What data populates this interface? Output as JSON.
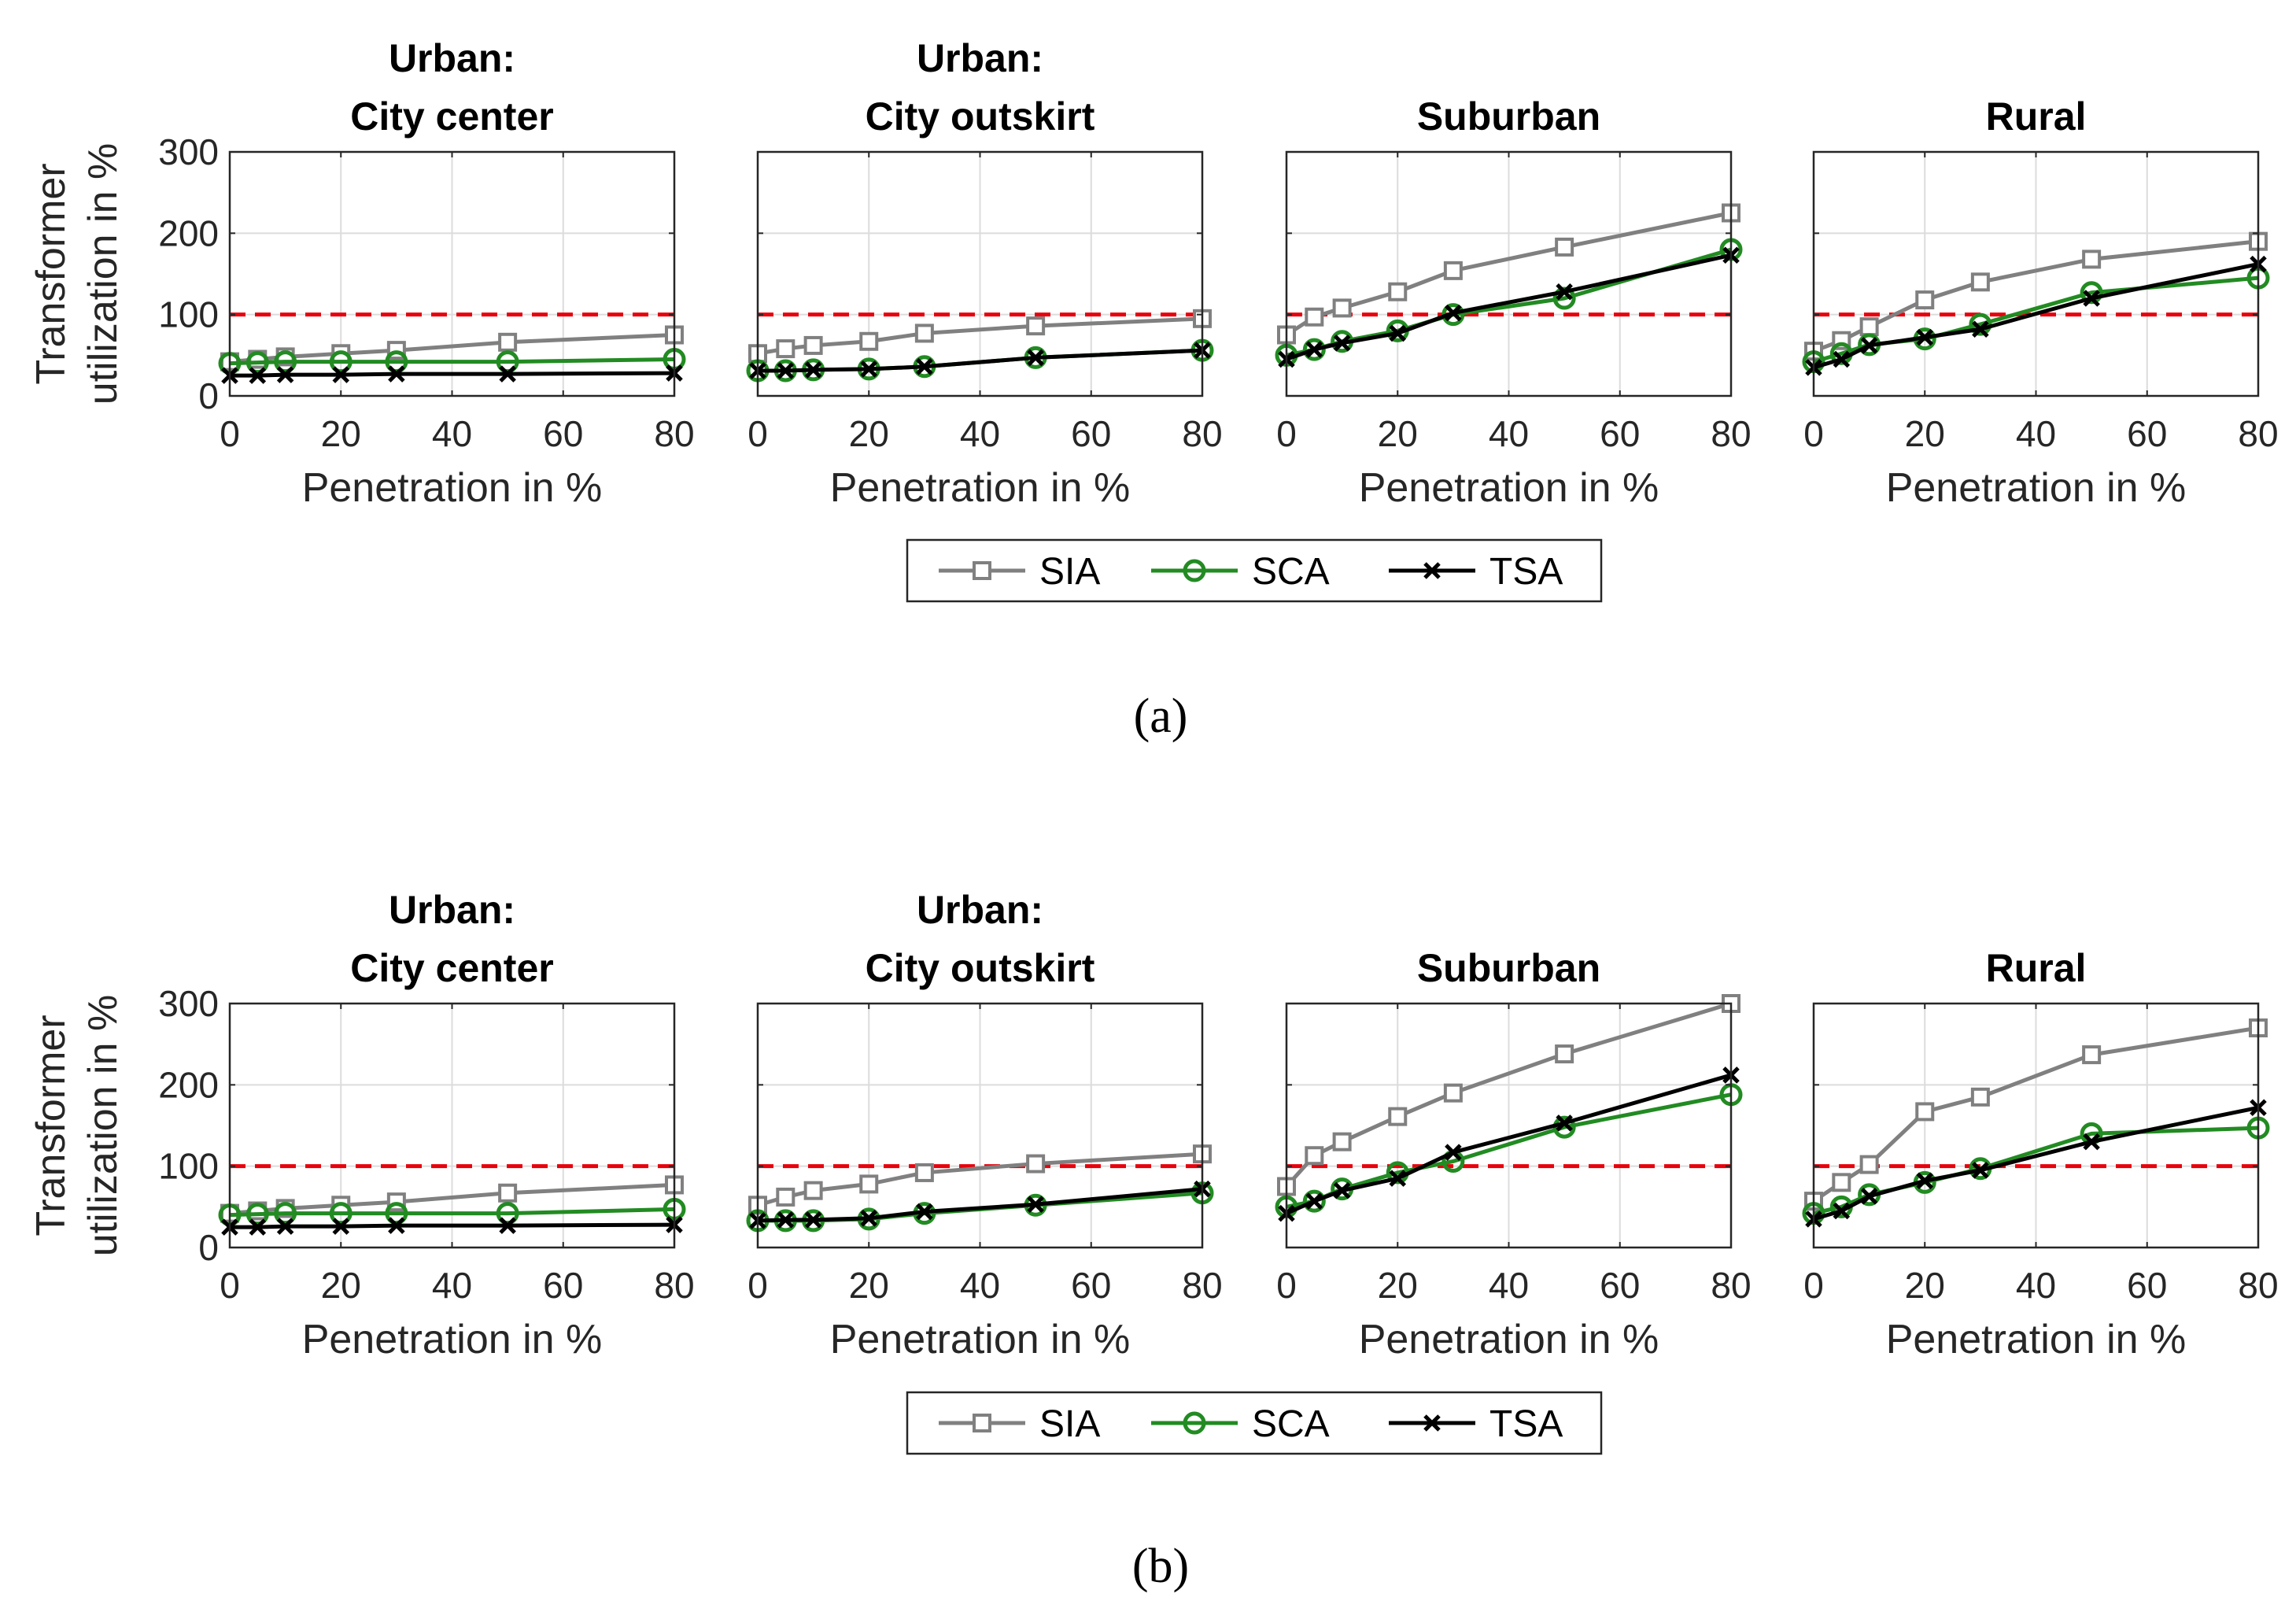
{
  "figure": {
    "ylabel_line1": "Transformer",
    "ylabel_line2": "utilization in %",
    "xlabel": "Penetration in %",
    "threshold_value": 100,
    "legend": [
      {
        "key": "SIA",
        "label": "SIA",
        "color": "#808080",
        "marker": "square"
      },
      {
        "key": "SCA",
        "label": "SCA",
        "color": "#228b22",
        "marker": "circle"
      },
      {
        "key": "TSA",
        "label": "TSA",
        "color": "#000000",
        "marker": "x"
      }
    ],
    "threshold_color": "#e8000b"
  },
  "chart_data": [
    {
      "panel": "(a)",
      "type": "line",
      "subplots": [
        {
          "title_line1": "Urban:",
          "title_line2": "City center",
          "x": [
            0,
            5,
            10,
            20,
            30,
            50,
            80
          ],
          "xlim": [
            0,
            80
          ],
          "ylim": [
            0,
            300
          ],
          "xticks": [
            0,
            20,
            40,
            60,
            80
          ],
          "yticks": [
            0,
            100,
            200,
            300
          ],
          "series": [
            {
              "name": "SIA",
              "values": [
                42,
                45,
                48,
                52,
                56,
                66,
                75
              ]
            },
            {
              "name": "SCA",
              "values": [
                40,
                41,
                42,
                42,
                42,
                42,
                45
              ]
            },
            {
              "name": "TSA",
              "values": [
                25,
                25,
                26,
                26,
                27,
                27,
                28
              ]
            }
          ],
          "threshold": 100
        },
        {
          "title_line1": "Urban:",
          "title_line2": "City outskirt",
          "x": [
            0,
            5,
            10,
            20,
            30,
            50,
            80
          ],
          "xlim": [
            0,
            80
          ],
          "ylim": [
            0,
            300
          ],
          "xticks": [
            0,
            20,
            40,
            60,
            80
          ],
          "yticks": [
            0,
            100,
            200,
            300
          ],
          "series": [
            {
              "name": "SIA",
              "values": [
                52,
                58,
                62,
                67,
                77,
                86,
                95
              ]
            },
            {
              "name": "SCA",
              "values": [
                31,
                31,
                32,
                33,
                36,
                47,
                56
              ]
            },
            {
              "name": "TSA",
              "values": [
                31,
                31,
                32,
                33,
                36,
                47,
                56
              ]
            }
          ],
          "threshold": 100
        },
        {
          "title_line1": "",
          "title_line2": "Suburban",
          "x": [
            0,
            5,
            10,
            20,
            30,
            50,
            80
          ],
          "xlim": [
            0,
            80
          ],
          "ylim": [
            0,
            300
          ],
          "xticks": [
            0,
            20,
            40,
            60,
            80
          ],
          "yticks": [
            0,
            100,
            200,
            300
          ],
          "series": [
            {
              "name": "SIA",
              "values": [
                75,
                97,
                108,
                128,
                154,
                183,
                225
              ]
            },
            {
              "name": "SCA",
              "values": [
                50,
                57,
                67,
                80,
                100,
                120,
                180
              ]
            },
            {
              "name": "TSA",
              "values": [
                45,
                57,
                65,
                77,
                102,
                128,
                173
              ]
            }
          ],
          "threshold": 100
        },
        {
          "title_line1": "",
          "title_line2": "Rural",
          "x": [
            0,
            5,
            10,
            20,
            30,
            50,
            80
          ],
          "xlim": [
            0,
            80
          ],
          "ylim": [
            0,
            300
          ],
          "xticks": [
            0,
            20,
            40,
            60,
            80
          ],
          "yticks": [
            0,
            100,
            200,
            300
          ],
          "series": [
            {
              "name": "SIA",
              "values": [
                55,
                68,
                85,
                118,
                140,
                168,
                190
              ]
            },
            {
              "name": "SCA",
              "values": [
                42,
                52,
                63,
                70,
                88,
                127,
                145
              ]
            },
            {
              "name": "TSA",
              "values": [
                35,
                45,
                62,
                72,
                82,
                120,
                162
              ]
            }
          ],
          "threshold": 100
        }
      ]
    },
    {
      "panel": "(b)",
      "type": "line",
      "subplots": [
        {
          "title_line1": "Urban:",
          "title_line2": "City center",
          "x": [
            0,
            5,
            10,
            20,
            30,
            50,
            80
          ],
          "xlim": [
            0,
            80
          ],
          "ylim": [
            0,
            300
          ],
          "xticks": [
            0,
            20,
            40,
            60,
            80
          ],
          "yticks": [
            0,
            100,
            200,
            300
          ],
          "series": [
            {
              "name": "SIA",
              "values": [
                42,
                45,
                48,
                52,
                56,
                67,
                77
              ]
            },
            {
              "name": "SCA",
              "values": [
                40,
                41,
                42,
                42,
                42,
                42,
                47
              ]
            },
            {
              "name": "TSA",
              "values": [
                25,
                25,
                26,
                26,
                27,
                27,
                28
              ]
            }
          ],
          "threshold": 100
        },
        {
          "title_line1": "Urban:",
          "title_line2": "City outskirt",
          "x": [
            0,
            5,
            10,
            20,
            30,
            50,
            80
          ],
          "xlim": [
            0,
            80
          ],
          "ylim": [
            0,
            300
          ],
          "xticks": [
            0,
            20,
            40,
            60,
            80
          ],
          "yticks": [
            0,
            100,
            200,
            300
          ],
          "series": [
            {
              "name": "SIA",
              "values": [
                52,
                62,
                70,
                78,
                92,
                103,
                115
              ]
            },
            {
              "name": "SCA",
              "values": [
                33,
                33,
                33,
                35,
                42,
                52,
                67
              ]
            },
            {
              "name": "TSA",
              "values": [
                33,
                34,
                34,
                36,
                44,
                53,
                72
              ]
            }
          ],
          "threshold": 100
        },
        {
          "title_line1": "",
          "title_line2": "Suburban",
          "x": [
            0,
            5,
            10,
            20,
            30,
            50,
            80
          ],
          "xlim": [
            0,
            80
          ],
          "ylim": [
            0,
            300
          ],
          "xticks": [
            0,
            20,
            40,
            60,
            80
          ],
          "yticks": [
            0,
            100,
            200,
            300
          ],
          "series": [
            {
              "name": "SIA",
              "values": [
                75,
                113,
                130,
                161,
                190,
                238,
                300
              ]
            },
            {
              "name": "SCA",
              "values": [
                50,
                57,
                72,
                92,
                106,
                148,
                188
              ]
            },
            {
              "name": "TSA",
              "values": [
                42,
                57,
                70,
                85,
                117,
                153,
                212
              ]
            }
          ],
          "threshold": 100
        },
        {
          "title_line1": "",
          "title_line2": "Rural",
          "x": [
            0,
            5,
            10,
            20,
            30,
            50,
            80
          ],
          "xlim": [
            0,
            80
          ],
          "ylim": [
            0,
            300
          ],
          "xticks": [
            0,
            20,
            40,
            60,
            80
          ],
          "yticks": [
            0,
            100,
            200,
            300
          ],
          "series": [
            {
              "name": "SIA",
              "values": [
                57,
                80,
                102,
                167,
                185,
                237,
                270
              ]
            },
            {
              "name": "SCA",
              "values": [
                42,
                50,
                65,
                80,
                97,
                140,
                147
              ]
            },
            {
              "name": "TSA",
              "values": [
                35,
                45,
                63,
                82,
                95,
                130,
                172
              ]
            }
          ],
          "threshold": 100
        }
      ]
    }
  ]
}
